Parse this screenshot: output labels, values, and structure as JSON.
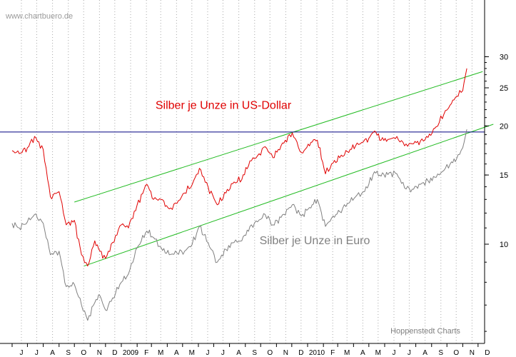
{
  "chart_data": {
    "type": "line",
    "watermark": "www.chartbuero.de",
    "source_credit": "Hoppenstedt Charts",
    "scale": "log",
    "ylim": [
      6,
      30
    ],
    "y_ticks": [
      10,
      15,
      20,
      25,
      30
    ],
    "x_range": [
      "2008-06-01",
      "2010-12-31"
    ],
    "x_ticks": [
      {
        "date": "2008-06-01",
        "label": "J"
      },
      {
        "date": "2008-07-01",
        "label": "J"
      },
      {
        "date": "2008-08-01",
        "label": "A"
      },
      {
        "date": "2008-09-01",
        "label": "S"
      },
      {
        "date": "2008-10-01",
        "label": "O"
      },
      {
        "date": "2008-11-01",
        "label": "N"
      },
      {
        "date": "2008-12-01",
        "label": "D"
      },
      {
        "date": "2009-01-01",
        "label": "2009"
      },
      {
        "date": "2009-02-01",
        "label": "F"
      },
      {
        "date": "2009-03-01",
        "label": "M"
      },
      {
        "date": "2009-04-01",
        "label": "A"
      },
      {
        "date": "2009-05-01",
        "label": "M"
      },
      {
        "date": "2009-06-01",
        "label": "J"
      },
      {
        "date": "2009-07-01",
        "label": "J"
      },
      {
        "date": "2009-08-01",
        "label": "A"
      },
      {
        "date": "2009-09-01",
        "label": "S"
      },
      {
        "date": "2009-10-01",
        "label": "O"
      },
      {
        "date": "2009-11-01",
        "label": "N"
      },
      {
        "date": "2009-12-01",
        "label": "D"
      },
      {
        "date": "2010-01-01",
        "label": "2010"
      },
      {
        "date": "2010-02-01",
        "label": "F"
      },
      {
        "date": "2010-03-01",
        "label": "M"
      },
      {
        "date": "2010-04-01",
        "label": "A"
      },
      {
        "date": "2010-05-01",
        "label": "M"
      },
      {
        "date": "2010-06-01",
        "label": "J"
      },
      {
        "date": "2010-07-01",
        "label": "J"
      },
      {
        "date": "2010-08-01",
        "label": "A"
      },
      {
        "date": "2010-09-01",
        "label": "S"
      },
      {
        "date": "2010-10-01",
        "label": "O"
      },
      {
        "date": "2010-11-01",
        "label": "N"
      },
      {
        "date": "2010-12-01",
        "label": "D"
      }
    ],
    "grid": "vertical dotted",
    "series": [
      {
        "name": "Silber je Unze in US-Dollar",
        "color": "#e00000",
        "points": [
          [
            "2008-06-01",
            17.3
          ],
          [
            "2008-06-15",
            17.0
          ],
          [
            "2008-07-01",
            17.6
          ],
          [
            "2008-07-15",
            18.8
          ],
          [
            "2008-08-01",
            17.4
          ],
          [
            "2008-08-15",
            13.2
          ],
          [
            "2008-09-01",
            13.6
          ],
          [
            "2008-09-15",
            11.2
          ],
          [
            "2008-10-01",
            11.5
          ],
          [
            "2008-10-15",
            9.4
          ],
          [
            "2008-10-27",
            8.8
          ],
          [
            "2008-11-10",
            10.2
          ],
          [
            "2008-11-20",
            9.6
          ],
          [
            "2008-12-01",
            9.2
          ],
          [
            "2008-12-15",
            10.1
          ],
          [
            "2009-01-01",
            11.2
          ],
          [
            "2009-01-15",
            11.0
          ],
          [
            "2009-02-01",
            12.6
          ],
          [
            "2009-02-20",
            14.2
          ],
          [
            "2009-03-05",
            13.0
          ],
          [
            "2009-03-20",
            13.0
          ],
          [
            "2009-04-05",
            12.3
          ],
          [
            "2009-04-20",
            12.7
          ],
          [
            "2009-05-05",
            13.5
          ],
          [
            "2009-05-20",
            14.2
          ],
          [
            "2009-06-03",
            15.6
          ],
          [
            "2009-06-20",
            14.0
          ],
          [
            "2009-07-08",
            12.6
          ],
          [
            "2009-07-25",
            13.5
          ],
          [
            "2009-08-10",
            14.4
          ],
          [
            "2009-08-25",
            14.6
          ],
          [
            "2009-09-10",
            16.3
          ],
          [
            "2009-09-25",
            16.8
          ],
          [
            "2009-10-10",
            17.7
          ],
          [
            "2009-10-25",
            16.6
          ],
          [
            "2009-11-10",
            17.8
          ],
          [
            "2009-12-02",
            19.2
          ],
          [
            "2009-12-20",
            17.1
          ],
          [
            "2010-01-10",
            18.2
          ],
          [
            "2010-01-20",
            18.4
          ],
          [
            "2010-02-05",
            15.1
          ],
          [
            "2010-02-20",
            16.1
          ],
          [
            "2010-03-05",
            16.6
          ],
          [
            "2010-03-20",
            17.2
          ],
          [
            "2010-04-05",
            17.8
          ],
          [
            "2010-04-20",
            18.2
          ],
          [
            "2010-05-01",
            18.6
          ],
          [
            "2010-05-12",
            19.4
          ],
          [
            "2010-05-25",
            18.4
          ],
          [
            "2010-06-10",
            18.5
          ],
          [
            "2010-06-25",
            18.8
          ],
          [
            "2010-07-10",
            17.8
          ],
          [
            "2010-07-25",
            18.0
          ],
          [
            "2010-08-10",
            18.3
          ],
          [
            "2010-08-25",
            18.7
          ],
          [
            "2010-09-10",
            19.9
          ],
          [
            "2010-09-25",
            21.4
          ],
          [
            "2010-10-10",
            22.8
          ],
          [
            "2010-10-20",
            23.8
          ],
          [
            "2010-11-01",
            24.6
          ],
          [
            "2010-11-06",
            26.8
          ],
          [
            "2010-11-09",
            28.0
          ]
        ]
      },
      {
        "name": "Silber je Unze in Euro",
        "color": "#808080",
        "points": [
          [
            "2008-06-01",
            11.3
          ],
          [
            "2008-06-15",
            11.0
          ],
          [
            "2008-07-01",
            11.4
          ],
          [
            "2008-07-15",
            11.9
          ],
          [
            "2008-08-01",
            11.3
          ],
          [
            "2008-08-15",
            9.4
          ],
          [
            "2008-09-01",
            9.6
          ],
          [
            "2008-09-15",
            7.8
          ],
          [
            "2008-10-01",
            7.9
          ],
          [
            "2008-10-15",
            7.0
          ],
          [
            "2008-10-27",
            6.4
          ],
          [
            "2008-11-10",
            7.1
          ],
          [
            "2008-11-20",
            7.4
          ],
          [
            "2008-12-01",
            6.8
          ],
          [
            "2008-12-15",
            7.3
          ],
          [
            "2009-01-01",
            8.0
          ],
          [
            "2009-01-15",
            8.4
          ],
          [
            "2009-02-01",
            9.8
          ],
          [
            "2009-02-20",
            10.8
          ],
          [
            "2009-03-05",
            10.4
          ],
          [
            "2009-03-20",
            9.8
          ],
          [
            "2009-04-05",
            9.4
          ],
          [
            "2009-04-20",
            9.5
          ],
          [
            "2009-05-05",
            9.6
          ],
          [
            "2009-05-20",
            10.0
          ],
          [
            "2009-06-03",
            11.1
          ],
          [
            "2009-06-20",
            10.1
          ],
          [
            "2009-07-08",
            9.0
          ],
          [
            "2009-07-25",
            9.7
          ],
          [
            "2009-08-10",
            10.1
          ],
          [
            "2009-08-25",
            10.2
          ],
          [
            "2009-09-10",
            11.1
          ],
          [
            "2009-09-25",
            11.4
          ],
          [
            "2009-10-10",
            11.9
          ],
          [
            "2009-10-25",
            11.2
          ],
          [
            "2009-11-10",
            11.7
          ],
          [
            "2009-12-02",
            12.6
          ],
          [
            "2009-12-20",
            11.8
          ],
          [
            "2010-01-10",
            12.6
          ],
          [
            "2010-01-20",
            13.0
          ],
          [
            "2010-02-05",
            11.1
          ],
          [
            "2010-02-20",
            11.8
          ],
          [
            "2010-03-05",
            12.1
          ],
          [
            "2010-03-20",
            12.7
          ],
          [
            "2010-04-05",
            13.2
          ],
          [
            "2010-04-20",
            13.6
          ],
          [
            "2010-05-01",
            14.2
          ],
          [
            "2010-05-12",
            15.3
          ],
          [
            "2010-05-25",
            14.9
          ],
          [
            "2010-06-10",
            15.2
          ],
          [
            "2010-06-25",
            15.1
          ],
          [
            "2010-07-10",
            13.9
          ],
          [
            "2010-07-25",
            13.8
          ],
          [
            "2010-08-10",
            14.2
          ],
          [
            "2010-08-25",
            14.5
          ],
          [
            "2010-09-10",
            14.8
          ],
          [
            "2010-09-25",
            15.4
          ],
          [
            "2010-10-10",
            16.2
          ],
          [
            "2010-10-20",
            16.5
          ],
          [
            "2010-11-01",
            17.6
          ],
          [
            "2010-11-06",
            18.8
          ],
          [
            "2010-11-09",
            19.6
          ]
        ]
      }
    ],
    "trend_lines": [
      {
        "color": "#22bb22",
        "from": [
          "2008-10-01",
          12.8
        ],
        "to": [
          "2010-12-10",
          27.5
        ]
      },
      {
        "color": "#22bb22",
        "from": [
          "2008-10-20",
          8.8
        ],
        "to": [
          "2010-12-31",
          20.2
        ]
      }
    ],
    "horizontal_line": {
      "color": "#000080",
      "value": 19.3
    },
    "annotations": [
      {
        "text": "Silber je Unze in US-Dollar",
        "color": "#e00000",
        "date": "2009-07-20",
        "value": 22.1
      },
      {
        "text": "Silber je Unze in Euro",
        "color": "#808080",
        "date": "2010-01-15",
        "value": 10.0
      }
    ]
  }
}
